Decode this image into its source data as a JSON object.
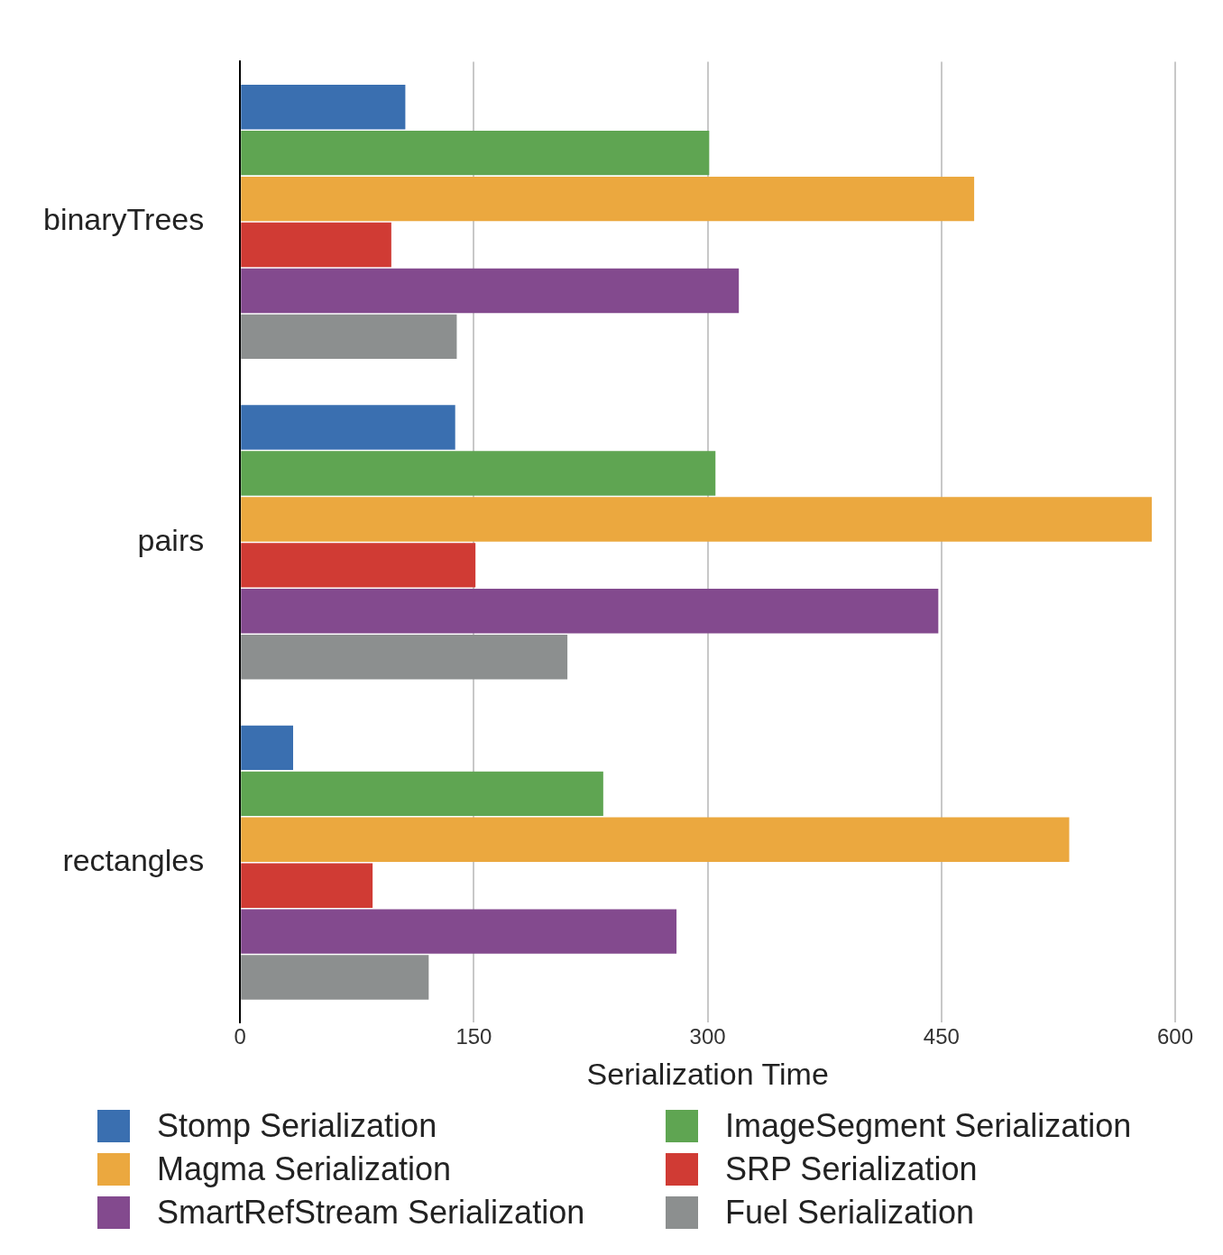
{
  "chart_data": {
    "type": "bar",
    "orientation": "horizontal",
    "xlabel": "Serialization Time",
    "categories": [
      "binaryTrees",
      "pairs",
      "rectangles"
    ],
    "series": [
      {
        "name": "Stomp Serialization",
        "color": "#3a6fb0",
        "values": [
          106,
          138,
          34
        ]
      },
      {
        "name": "ImageSegment Serialization",
        "color": "#5fa552",
        "values": [
          301,
          305,
          233
        ]
      },
      {
        "name": "Magma Serialization",
        "color": "#eba83f",
        "values": [
          471,
          585,
          532
        ]
      },
      {
        "name": "SRP Serialization",
        "color": "#d03b34",
        "values": [
          97,
          151,
          85
        ]
      },
      {
        "name": "SmartRefStream Serialization",
        "color": "#834a8e",
        "values": [
          320,
          448,
          280
        ]
      },
      {
        "name": "Fuel Serialization",
        "color": "#8c8f8f",
        "values": [
          139,
          210,
          121
        ]
      }
    ],
    "xlim": [
      0,
      600
    ],
    "xticks": [
      0,
      150,
      300,
      450,
      600
    ],
    "grid": "x",
    "legend": "bottom"
  }
}
